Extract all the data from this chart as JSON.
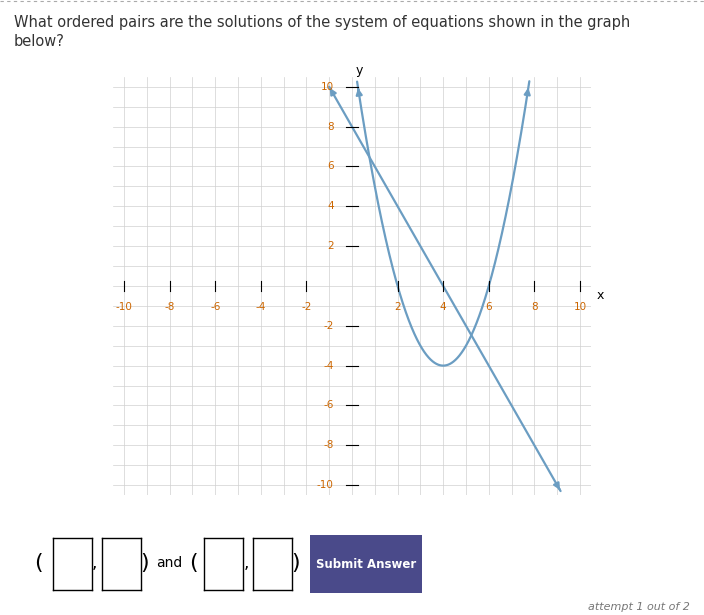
{
  "title_line1": "What ordered pairs are the solutions of the system of equations shown in the graph",
  "title_line2": "below?",
  "xlim": [
    -10.5,
    10.5
  ],
  "ylim": [
    -10.5,
    10.5
  ],
  "xticks": [
    -10,
    -8,
    -6,
    -4,
    -2,
    2,
    4,
    6,
    8,
    10
  ],
  "yticks": [
    -10,
    -8,
    -6,
    -4,
    -2,
    2,
    4,
    6,
    8,
    10
  ],
  "curve_color": "#6b9dc2",
  "curve_linewidth": 1.6,
  "parabola_coeffs": [
    1,
    -8,
    12
  ],
  "line_coeffs": [
    -2,
    8
  ],
  "background_color": "#ffffff",
  "grid_color": "#d0d0d0",
  "axis_color": "#000000",
  "answer_box_bg": "#e0e0e0",
  "submit_btn_color": "#4a4a8a",
  "submit_btn_text": "Submit Answer",
  "attempt_text": "attempt 1 out of 2",
  "font_color_title": "#333333",
  "tick_color": "#cc6600",
  "answer_label": "and",
  "figsize": [
    7.04,
    6.15
  ],
  "dpi": 100
}
